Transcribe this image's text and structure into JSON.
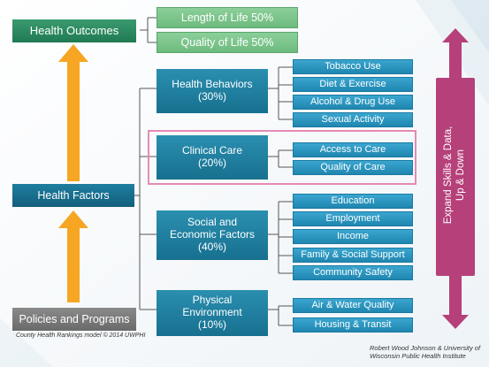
{
  "outcomes": {
    "title": "Health Outcomes",
    "length": "Length of Life 50%",
    "quality": "Quality of Life 50%"
  },
  "factors": {
    "title": "Health Factors",
    "behaviors": {
      "line1": "Health Behaviors",
      "line2": "(30%)"
    },
    "clinical": {
      "line1": "Clinical Care",
      "line2": "(20%)"
    },
    "social": {
      "line1": "Social and",
      "line2": "Economic Factors",
      "line3": "(40%)"
    },
    "physical": {
      "line1": "Physical",
      "line2": "Environment",
      "line3": "(10%)"
    }
  },
  "behavior_items": [
    "Tobacco Use",
    "Diet & Exercise",
    "Alcohol & Drug Use",
    "Sexual Activity"
  ],
  "clinical_items": [
    "Access to Care",
    "Quality of Care"
  ],
  "social_items": [
    "Education",
    "Employment",
    "Income",
    "Family & Social Support",
    "Community Safety"
  ],
  "physical_items": [
    "Air & Water Quality",
    "Housing & Transit"
  ],
  "policies": "Policies and Programs",
  "side_arrow": {
    "line1": "Expand Skills & Data,",
    "line2": "Up & Down"
  },
  "captions": {
    "model": "County Health Rankings model © 2014 UWPHI",
    "credit_line1": "Robert Wood Johnson & University of",
    "credit_line2": "Wisconsin Public Health Institute"
  },
  "colors": {
    "outcome_green": "#1f7a52",
    "outcome_light_green": "#6dbb7e",
    "factor_teal": "#17708f",
    "item_blue": "#1f86b0",
    "policy_gray": "#6a6a6a",
    "arrow_orange": "#f6a623",
    "arrow_magenta": "#b5407a",
    "highlight_pink": "#e68ab5"
  }
}
